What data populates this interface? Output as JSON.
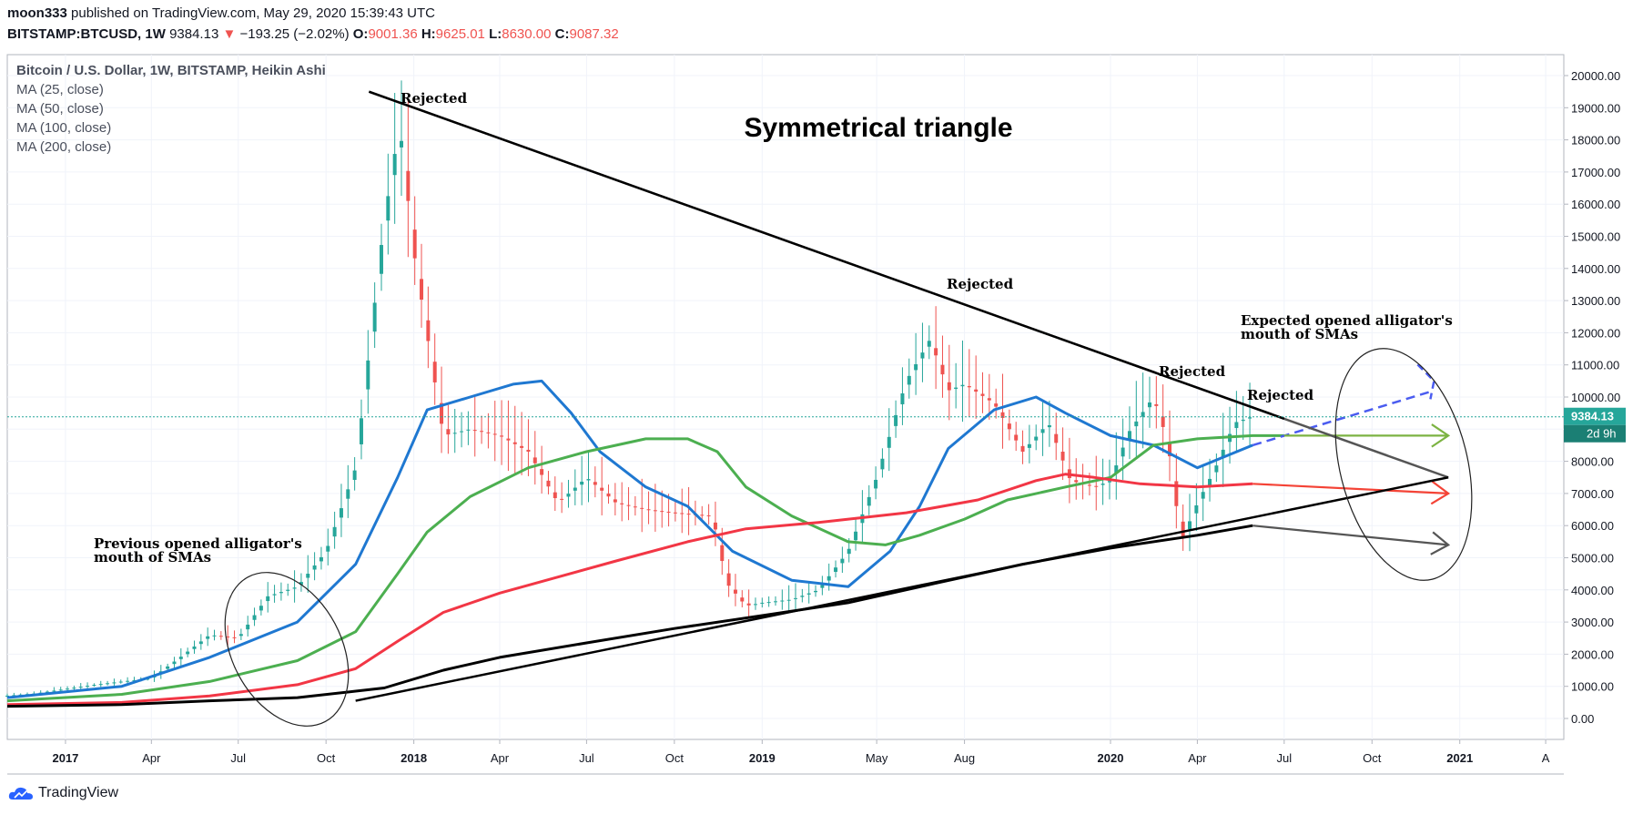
{
  "header": {
    "author": "moon333",
    "published_text": "published on TradingView.com, May 29, 2020 15:39:43 UTC",
    "symbol": "BITSTAMP:BTCUSD, 1W",
    "last_price": "9384.13",
    "change_arrow": "▼",
    "change": "−193.25 (−2.02%)",
    "open_label": "O:",
    "open": "9001.36",
    "high_label": "H:",
    "high": "9625.01",
    "low_label": "L:",
    "low": "8630.00",
    "close_label": "C:",
    "close": "9087.32"
  },
  "legend": {
    "title": "Bitcoin / U.S. Dollar, 1W, BITSTAMP, Heikin Ashi",
    "ma_items": [
      "MA (25, close)",
      "MA (50, close)",
      "MA (100, close)",
      "MA (200, close)"
    ]
  },
  "footer": {
    "brand": "TradingView"
  },
  "colors": {
    "up": "#26a69a",
    "down": "#ef5350",
    "ma25": "#1f78d1",
    "ma50": "#4caf50",
    "ma100": "#f23645",
    "ma200": "#000000",
    "price_badge": "#26a69a"
  },
  "chart_data": {
    "type": "candlestick",
    "title": "Symmetrical triangle",
    "xlabel": "",
    "ylabel": "",
    "ylim": [
      0,
      20000
    ],
    "xlim": [
      "2016-11-01",
      "2021-04-20"
    ],
    "y_ticks": [
      "0.00",
      "1000.00",
      "2000.00",
      "3000.00",
      "4000.00",
      "5000.00",
      "6000.00",
      "7000.00",
      "8000.00",
      "9000.00",
      "10000.00",
      "11000.00",
      "12000.00",
      "13000.00",
      "14000.00",
      "15000.00",
      "16000.00",
      "17000.00",
      "18000.00",
      "19000.00",
      "20000.00"
    ],
    "x_ticks": [
      {
        "label": "2017",
        "date": "2017-01-01",
        "bold": true
      },
      {
        "label": "Apr",
        "date": "2017-04-01"
      },
      {
        "label": "Jul",
        "date": "2017-07-01"
      },
      {
        "label": "Oct",
        "date": "2017-10-01"
      },
      {
        "label": "2018",
        "date": "2018-01-01",
        "bold": true
      },
      {
        "label": "Apr",
        "date": "2018-04-01"
      },
      {
        "label": "Jul",
        "date": "2018-07-01"
      },
      {
        "label": "Oct",
        "date": "2018-10-01"
      },
      {
        "label": "2019",
        "date": "2019-01-01",
        "bold": true
      },
      {
        "label": "May",
        "date": "2019-05-01"
      },
      {
        "label": "Aug",
        "date": "2019-08-01"
      },
      {
        "label": "2020",
        "date": "2020-01-01",
        "bold": true
      },
      {
        "label": "Apr",
        "date": "2020-04-01"
      },
      {
        "label": "Jul",
        "date": "2020-07-01"
      },
      {
        "label": "Oct",
        "date": "2020-10-01"
      },
      {
        "label": "2021",
        "date": "2021-01-01",
        "bold": true
      },
      {
        "label": "A",
        "date": "2021-04-01"
      }
    ],
    "price_line": {
      "value": 9384.13,
      "label": "9384.13",
      "countdown": "2d 9h"
    },
    "candle_keys": [
      [
        "2016-11-01",
        710
      ],
      [
        "2016-12-01",
        780
      ],
      [
        "2017-01-01",
        920
      ],
      [
        "2017-02-01",
        1050
      ],
      [
        "2017-03-01",
        1150
      ],
      [
        "2017-04-01",
        1250
      ],
      [
        "2017-05-01",
        1900
      ],
      [
        "2017-06-01",
        2600
      ],
      [
        "2017-07-01",
        2500
      ],
      [
        "2017-08-01",
        3800
      ],
      [
        "2017-09-01",
        4100
      ],
      [
        "2017-10-01",
        5200
      ],
      [
        "2017-11-01",
        7800
      ],
      [
        "2017-12-01",
        15500
      ],
      [
        "2017-12-17",
        18500
      ],
      [
        "2018-01-01",
        14500
      ],
      [
        "2018-02-01",
        8800
      ],
      [
        "2018-03-01",
        9000
      ],
      [
        "2018-04-01",
        8800
      ],
      [
        "2018-05-01",
        8300
      ],
      [
        "2018-06-01",
        6700
      ],
      [
        "2018-07-01",
        7500
      ],
      [
        "2018-08-01",
        6700
      ],
      [
        "2018-09-01",
        6500
      ],
      [
        "2018-10-01",
        6400
      ],
      [
        "2018-11-10",
        6300
      ],
      [
        "2018-11-25",
        4200
      ],
      [
        "2018-12-15",
        3500
      ],
      [
        "2019-01-01",
        3600
      ],
      [
        "2019-02-01",
        3700
      ],
      [
        "2019-03-01",
        4000
      ],
      [
        "2019-04-01",
        5200
      ],
      [
        "2019-05-01",
        7500
      ],
      [
        "2019-06-01",
        10500
      ],
      [
        "2019-06-26",
        11800
      ],
      [
        "2019-07-15",
        10200
      ],
      [
        "2019-08-01",
        10400
      ],
      [
        "2019-09-01",
        9800
      ],
      [
        "2019-10-01",
        8300
      ],
      [
        "2019-10-28",
        9200
      ],
      [
        "2019-11-20",
        7400
      ],
      [
        "2019-12-15",
        7200
      ],
      [
        "2020-01-01",
        7400
      ],
      [
        "2020-01-20",
        8900
      ],
      [
        "2020-02-15",
        10000
      ],
      [
        "2020-03-01",
        8600
      ],
      [
        "2020-03-15",
        5500
      ],
      [
        "2020-04-01",
        6700
      ],
      [
        "2020-04-20",
        7800
      ],
      [
        "2020-05-10",
        9200
      ],
      [
        "2020-05-29",
        9400
      ]
    ],
    "ma_series": [
      {
        "id": "ma25",
        "points": [
          [
            "2016-11-01",
            650
          ],
          [
            "2017-03-01",
            1000
          ],
          [
            "2017-06-01",
            1900
          ],
          [
            "2017-09-01",
            3000
          ],
          [
            "2017-11-01",
            4800
          ],
          [
            "2017-12-15",
            7500
          ],
          [
            "2018-01-15",
            9600
          ],
          [
            "2018-03-01",
            10000
          ],
          [
            "2018-04-15",
            10400
          ],
          [
            "2018-05-15",
            10500
          ],
          [
            "2018-06-15",
            9500
          ],
          [
            "2018-07-15",
            8300
          ],
          [
            "2018-09-01",
            7200
          ],
          [
            "2018-10-15",
            6600
          ],
          [
            "2018-12-01",
            5200
          ],
          [
            "2019-02-01",
            4300
          ],
          [
            "2019-04-01",
            4100
          ],
          [
            "2019-05-15",
            5200
          ],
          [
            "2019-06-15",
            6600
          ],
          [
            "2019-07-15",
            8400
          ],
          [
            "2019-09-01",
            9600
          ],
          [
            "2019-10-15",
            10000
          ],
          [
            "2019-11-15",
            9500
          ],
          [
            "2020-01-01",
            8800
          ],
          [
            "2020-02-15",
            8500
          ],
          [
            "2020-04-01",
            7800
          ],
          [
            "2020-05-29",
            8500
          ]
        ]
      },
      {
        "id": "ma50",
        "points": [
          [
            "2016-11-01",
            550
          ],
          [
            "2017-03-01",
            750
          ],
          [
            "2017-06-01",
            1150
          ],
          [
            "2017-09-01",
            1800
          ],
          [
            "2017-11-01",
            2700
          ],
          [
            "2017-12-15",
            4500
          ],
          [
            "2018-01-15",
            5800
          ],
          [
            "2018-03-01",
            6900
          ],
          [
            "2018-05-01",
            7800
          ],
          [
            "2018-07-01",
            8300
          ],
          [
            "2018-09-01",
            8700
          ],
          [
            "2018-10-15",
            8700
          ],
          [
            "2018-11-15",
            8300
          ],
          [
            "2018-12-15",
            7200
          ],
          [
            "2019-02-01",
            6300
          ],
          [
            "2019-04-01",
            5500
          ],
          [
            "2019-05-10",
            5400
          ],
          [
            "2019-06-15",
            5700
          ],
          [
            "2019-08-01",
            6200
          ],
          [
            "2019-09-15",
            6800
          ],
          [
            "2019-11-15",
            7200
          ],
          [
            "2020-01-01",
            7500
          ],
          [
            "2020-02-15",
            8500
          ],
          [
            "2020-04-01",
            8700
          ],
          [
            "2020-05-29",
            8800
          ],
          [
            "2020-07-01",
            8800
          ]
        ]
      },
      {
        "id": "ma100",
        "points": [
          [
            "2016-11-01",
            430
          ],
          [
            "2017-03-01",
            500
          ],
          [
            "2017-06-01",
            700
          ],
          [
            "2017-09-01",
            1050
          ],
          [
            "2017-11-01",
            1550
          ],
          [
            "2017-12-15",
            2400
          ],
          [
            "2018-02-01",
            3300
          ],
          [
            "2018-04-01",
            3900
          ],
          [
            "2018-06-01",
            4400
          ],
          [
            "2018-08-01",
            4900
          ],
          [
            "2018-10-15",
            5500
          ],
          [
            "2018-12-15",
            5900
          ],
          [
            "2019-03-01",
            6100
          ],
          [
            "2019-06-01",
            6400
          ],
          [
            "2019-08-15",
            6800
          ],
          [
            "2019-10-15",
            7400
          ],
          [
            "2019-11-15",
            7600
          ],
          [
            "2019-12-15",
            7500
          ],
          [
            "2020-02-01",
            7300
          ],
          [
            "2020-04-01",
            7200
          ],
          [
            "2020-05-29",
            7300
          ]
        ]
      },
      {
        "id": "ma200",
        "points": [
          [
            "2016-11-01",
            380
          ],
          [
            "2017-03-01",
            430
          ],
          [
            "2017-06-01",
            550
          ],
          [
            "2017-09-01",
            650
          ],
          [
            "2017-11-01",
            850
          ],
          [
            "2017-12-01",
            950
          ],
          [
            "2018-02-01",
            1500
          ],
          [
            "2018-04-01",
            1900
          ],
          [
            "2018-07-01",
            2350
          ],
          [
            "2018-10-01",
            2800
          ],
          [
            "2019-01-01",
            3200
          ],
          [
            "2019-04-01",
            3600
          ],
          [
            "2019-07-01",
            4200
          ],
          [
            "2019-10-01",
            4800
          ],
          [
            "2020-01-01",
            5300
          ],
          [
            "2020-04-01",
            5700
          ],
          [
            "2020-05-29",
            6000
          ]
        ]
      }
    ],
    "ma_projections": [
      {
        "id": "ma25",
        "from": [
          "2020-05-29",
          8500
        ],
        "to": [
          "2020-12-05",
          10200
        ],
        "tip": [
          "2020-12-05",
          10500
        ],
        "style": "dashed"
      },
      {
        "id": "ma50",
        "from": [
          "2020-07-01",
          8800
        ],
        "to": [
          "2020-12-20",
          8800
        ],
        "style": "arrow"
      },
      {
        "id": "ma100",
        "from": [
          "2020-05-29",
          7300
        ],
        "to": [
          "2020-12-20",
          7000
        ],
        "style": "arrow"
      },
      {
        "id": "ma200",
        "from": [
          "2020-05-29",
          6000
        ],
        "to": [
          "2020-12-20",
          5400
        ],
        "style": "arrow"
      }
    ],
    "trendlines": [
      {
        "name": "upper",
        "from": [
          "2017-11-15",
          19500
        ],
        "to": [
          "2020-12-20",
          7500
        ],
        "arrow": true
      },
      {
        "name": "lower",
        "from": [
          "2017-11-01",
          550
        ],
        "to": [
          "2020-12-20",
          7500
        ]
      }
    ],
    "annotations": [
      {
        "text": "Rejected",
        "x": "2017-12-15",
        "y": 19500
      },
      {
        "text": "Rejected",
        "x": "2019-07-15",
        "y": 13700
      },
      {
        "text": "Rejected",
        "x": "2020-02-10",
        "y": 10800
      },
      {
        "text": "Rejected",
        "x": "2020-05-10",
        "y": 10000
      },
      {
        "text": "Expected opened alligator's",
        "x": "2020-04-20",
        "y": 12250
      },
      {
        "text": "mouth of SMAs",
        "x": "2020-04-20",
        "y": 11800
      },
      {
        "text": "Previous opened alligator's",
        "x": "2016-12-20",
        "y": 5300
      },
      {
        "text": "mouth of SMAs",
        "x": "2016-12-20",
        "y": 4850
      }
    ],
    "ellipses": [
      {
        "name": "previous",
        "cx": "2017-09-01",
        "cy": 2300,
        "note": "around 2017 SMA expansion"
      },
      {
        "name": "expected",
        "cx": "2020-10-20",
        "cy": 7400,
        "note": "around projected SMA expansion"
      }
    ]
  }
}
